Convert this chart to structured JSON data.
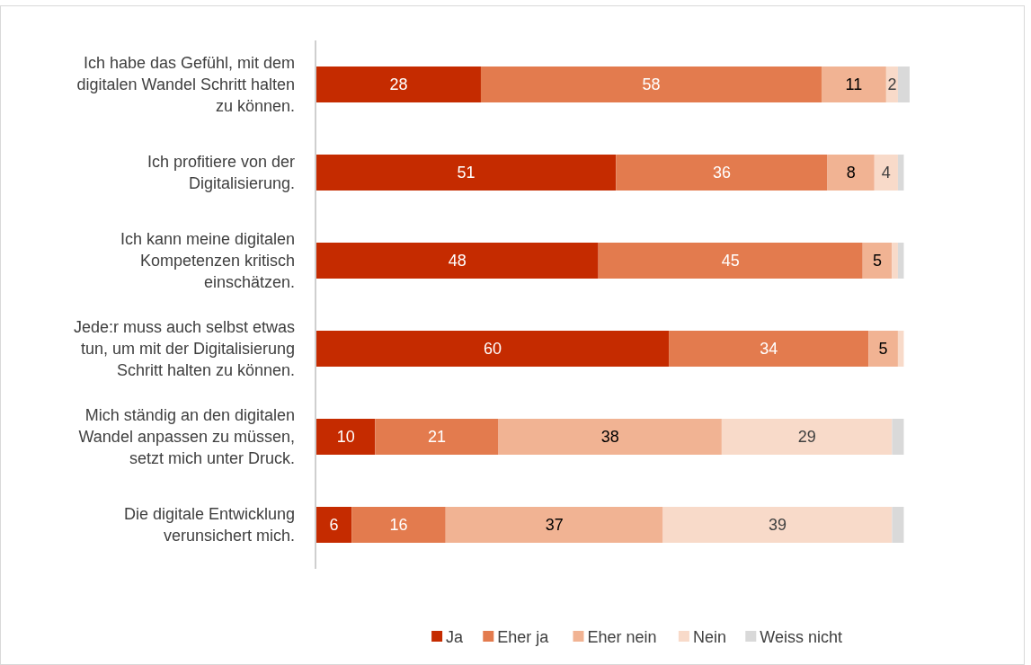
{
  "chart_data": {
    "type": "bar",
    "orientation": "horizontal",
    "stacked": true,
    "legend": "bottom",
    "categories": [
      "Ich habe das Gefühl, mit dem digitalen Wandel Schritt halten zu können.",
      "Ich profitiere von der Digitalisierung.",
      "Ich kann meine digitalen Kompetenzen kritisch einschätzen.",
      "Jede:r muss auch selbst etwas tun, um mit der Digitalisierung Schritt halten zu können.",
      "Mich ständig an den digitalen Wandel anpassen zu müssen, setzt mich unter Druck.",
      "Die digitale Entwicklung verunsichert mich."
    ],
    "series": [
      {
        "name": "Ja",
        "color": "#c52b00",
        "values": [
          28,
          51,
          48,
          60,
          10,
          6
        ],
        "value_labels": [
          "28",
          "51",
          "48",
          "60",
          "10",
          "6"
        ]
      },
      {
        "name": "Eher ja",
        "color": "#e37b4e",
        "values": [
          58,
          36,
          45,
          34,
          21,
          16
        ],
        "value_labels": [
          "58",
          "36",
          "45",
          "34",
          "21",
          "16"
        ]
      },
      {
        "name": "Eher nein",
        "color": "#f1b393",
        "values": [
          11,
          8,
          5,
          5,
          38,
          37
        ],
        "value_labels": [
          "11",
          "8",
          "5",
          "5",
          "38",
          "37"
        ]
      },
      {
        "name": "Nein",
        "color": "#f8dac9",
        "values": [
          2,
          4,
          1,
          1,
          29,
          39
        ],
        "value_labels": [
          "2",
          "4",
          null,
          null,
          "29",
          "39"
        ]
      },
      {
        "name": "Weiss nicht",
        "color": "#d9d9d9",
        "values": [
          2,
          1,
          1,
          null,
          2,
          2
        ],
        "value_labels": [
          null,
          null,
          null,
          null,
          null,
          null
        ]
      }
    ]
  }
}
